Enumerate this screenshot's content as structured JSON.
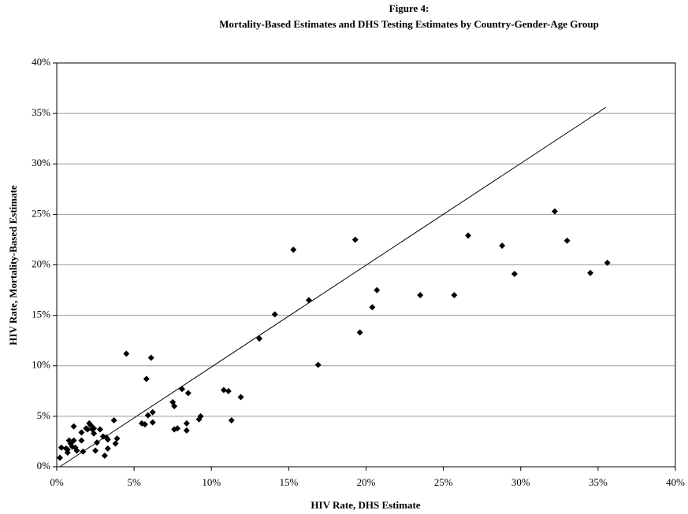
{
  "chart_data": {
    "type": "scatter",
    "title": "Figure 4:",
    "subtitle": "Mortality-Based Estimates and DHS Testing Estimates by Country-Gender-Age Group",
    "x_label": "HIV Rate, DHS Estimate",
    "y_label": "HIV Rate, Mortality-Based Estimate",
    "xlim": [
      0,
      40
    ],
    "ylim": [
      0,
      40
    ],
    "xticks": [
      {
        "value": 0,
        "label": "0%"
      },
      {
        "value": 5,
        "label": "5%"
      },
      {
        "value": 10,
        "label": "10%"
      },
      {
        "value": 15,
        "label": "15%"
      },
      {
        "value": 20,
        "label": "20%"
      },
      {
        "value": 25,
        "label": "25%"
      },
      {
        "value": 30,
        "label": "30%"
      },
      {
        "value": 35,
        "label": "35%"
      },
      {
        "value": 40,
        "label": "40%"
      }
    ],
    "yticks": [
      {
        "value": 0,
        "label": "0%"
      },
      {
        "value": 5,
        "label": "5%"
      },
      {
        "value": 10,
        "label": "10%"
      },
      {
        "value": 15,
        "label": "15%"
      },
      {
        "value": 20,
        "label": "20%"
      },
      {
        "value": 25,
        "label": "25%"
      },
      {
        "value": 30,
        "label": "30%"
      },
      {
        "value": 35,
        "label": "35%"
      },
      {
        "value": 40,
        "label": "40%"
      }
    ],
    "grid": true,
    "color": "#000000",
    "x": [
      0.2,
      0.3,
      0.6,
      0.7,
      0.7,
      0.8,
      0.9,
      1.0,
      1.1,
      1.1,
      1.2,
      1.3,
      1.6,
      1.6,
      1.7,
      1.9,
      2.0,
      2.1,
      2.2,
      2.3,
      2.4,
      2.4,
      2.5,
      2.6,
      2.8,
      3.0,
      3.1,
      3.2,
      3.3,
      3.3,
      3.7,
      3.8,
      3.9,
      4.5,
      5.5,
      5.7,
      5.8,
      5.9,
      6.1,
      6.2,
      6.2,
      7.5,
      7.6,
      7.6,
      7.8,
      8.1,
      8.4,
      8.4,
      8.5,
      9.2,
      9.3,
      10.8,
      11.1,
      11.3,
      11.9,
      13.1,
      14.1,
      15.3,
      16.3,
      16.9,
      19.3,
      19.6,
      20.4,
      20.7,
      23.5,
      25.7,
      26.6,
      28.8,
      29.6,
      32.2,
      33.0,
      34.5,
      35.6
    ],
    "values": [
      0.9,
      1.9,
      1.8,
      1.4,
      1.7,
      2.6,
      2.3,
      2.0,
      4.0,
      2.6,
      1.9,
      1.6,
      3.4,
      2.6,
      1.5,
      3.8,
      3.7,
      4.3,
      4.1,
      3.7,
      3.8,
      3.3,
      1.6,
      2.4,
      3.7,
      3.0,
      1.1,
      2.9,
      1.8,
      2.7,
      4.6,
      2.3,
      2.8,
      11.2,
      4.3,
      4.2,
      8.7,
      5.1,
      10.8,
      5.4,
      4.4,
      6.4,
      6.0,
      3.7,
      3.8,
      7.7,
      3.6,
      4.3,
      7.3,
      4.7,
      5.0,
      7.6,
      7.5,
      4.6,
      6.9,
      12.7,
      15.1,
      21.5,
      16.5,
      10.1,
      22.5,
      13.3,
      15.8,
      17.5,
      17.0,
      17.0,
      22.9,
      21.9,
      19.1,
      25.3,
      22.4,
      19.2,
      20.2
    ],
    "reference_line": {
      "x": [
        0.2,
        35.5
      ],
      "values": [
        0,
        35.6
      ]
    }
  }
}
